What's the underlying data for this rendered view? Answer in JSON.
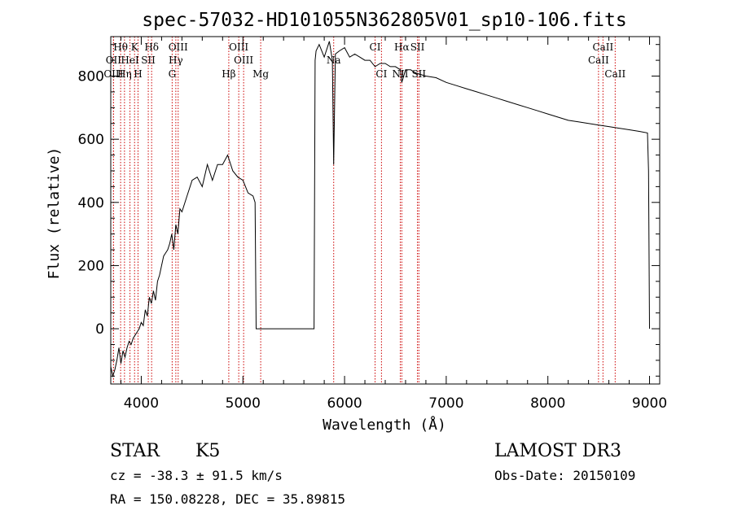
{
  "chart_data": {
    "type": "line",
    "title": "spec-57032-HD101055N362805V01_sp10-106.fits",
    "xlabel": "Wavelength (Å)",
    "ylabel": "Flux (relative)",
    "xlim": [
      3700,
      9100
    ],
    "ylim": [
      -175,
      925
    ],
    "xticks": [
      4000,
      5000,
      6000,
      7000,
      8000,
      9000
    ],
    "yticks": [
      0,
      200,
      400,
      600,
      800
    ],
    "grid": false,
    "series": [
      {
        "values_x": [
          3700,
          3720,
          3740,
          3760,
          3780,
          3800,
          3820,
          3840,
          3860,
          3880,
          3900,
          3920,
          3940,
          3960,
          3980,
          4000,
          4020,
          4040,
          4060,
          4080,
          4100,
          4120,
          4140,
          4160,
          4180,
          4200,
          4220,
          4240,
          4260,
          4280,
          4300,
          4320,
          4340,
          4360,
          4380,
          4400,
          4450,
          4500,
          4550,
          4600,
          4650,
          4700,
          4750,
          4800,
          4850,
          4900,
          4950,
          5000,
          5050,
          5100,
          5120,
          5130,
          5140,
          5700,
          5710,
          5720,
          5750,
          5800,
          5850,
          5880,
          5893,
          5910,
          5950,
          6000,
          6050,
          6100,
          6150,
          6200,
          6250,
          6300,
          6350,
          6400,
          6450,
          6500,
          6550,
          6563,
          6600,
          6650,
          6700,
          6750,
          6800,
          6900,
          7000,
          7100,
          7200,
          7300,
          7400,
          7500,
          7600,
          7700,
          7800,
          7900,
          8000,
          8100,
          8200,
          8300,
          8400,
          8500,
          8600,
          8700,
          8800,
          8900,
          8980,
          8990,
          9000
        ],
        "values_y": [
          -120,
          -150,
          -130,
          -100,
          -60,
          -110,
          -70,
          -90,
          -60,
          -40,
          -50,
          -30,
          -20,
          -10,
          0,
          20,
          10,
          60,
          40,
          100,
          80,
          120,
          90,
          150,
          170,
          200,
          230,
          240,
          250,
          270,
          300,
          250,
          330,
          300,
          380,
          370,
          420,
          470,
          480,
          450,
          520,
          470,
          520,
          520,
          550,
          500,
          480,
          470,
          430,
          420,
          400,
          0,
          0,
          0,
          850,
          880,
          900,
          860,
          910,
          850,
          520,
          870,
          880,
          890,
          860,
          870,
          860,
          850,
          850,
          830,
          840,
          840,
          830,
          830,
          820,
          780,
          820,
          820,
          810,
          805,
          800,
          795,
          780,
          770,
          760,
          750,
          740,
          730,
          720,
          710,
          700,
          690,
          680,
          670,
          660,
          655,
          650,
          645,
          640,
          635,
          630,
          625,
          620,
          500,
          0
        ]
      }
    ],
    "lines": [
      {
        "label": "Hθ",
        "x": 3797,
        "row": 1
      },
      {
        "label": "OII",
        "x": 3727,
        "row": 2
      },
      {
        "label": "OIII",
        "x": 3727,
        "row": 3
      },
      {
        "label": "Hη",
        "x": 3835,
        "row": 3
      },
      {
        "label": "HeI",
        "x": 3889,
        "row": 2
      },
      {
        "label": "K",
        "x": 3934,
        "row": 1
      },
      {
        "label": "SII",
        "x": 4069,
        "row": 2
      },
      {
        "label": "H",
        "x": 3968,
        "row": 3
      },
      {
        "label": "Hδ",
        "x": 4102,
        "row": 1
      },
      {
        "label": "OIII",
        "x": 4363,
        "row": 1
      },
      {
        "label": "Hγ",
        "x": 4340,
        "row": 2
      },
      {
        "label": "G",
        "x": 4304,
        "row": 3
      },
      {
        "label": "OIII",
        "x": 4959,
        "row": 1
      },
      {
        "label": "OIII",
        "x": 5007,
        "row": 2
      },
      {
        "label": "Hβ",
        "x": 4861,
        "row": 3
      },
      {
        "label": "Mg",
        "x": 5175,
        "row": 3
      },
      {
        "label": "Na",
        "x": 5893,
        "row": 2
      },
      {
        "label": "CI",
        "x": 6300,
        "row": 1
      },
      {
        "label": "CI",
        "x": 6363,
        "row": 3
      },
      {
        "label": "Hα",
        "x": 6563,
        "row": 1
      },
      {
        "label": "NII",
        "x": 6548,
        "row": 3
      },
      {
        "label": "SII",
        "x": 6717,
        "row": 1
      },
      {
        "label": "SII",
        "x": 6731,
        "row": 3
      },
      {
        "label": "CaII",
        "x": 8542,
        "row": 1
      },
      {
        "label": "CaII",
        "x": 8498,
        "row": 2
      },
      {
        "label": "CaII",
        "x": 8662,
        "row": 3
      }
    ]
  },
  "info": {
    "class_label": "STAR",
    "subclass_label": "K5",
    "survey": "LAMOST DR3",
    "cz": "cz = -38.3 ± 91.5 km/s",
    "obs_date": "Obs-Date: 20150109",
    "coords": "RA = 150.08228, DEC =  35.89815"
  }
}
